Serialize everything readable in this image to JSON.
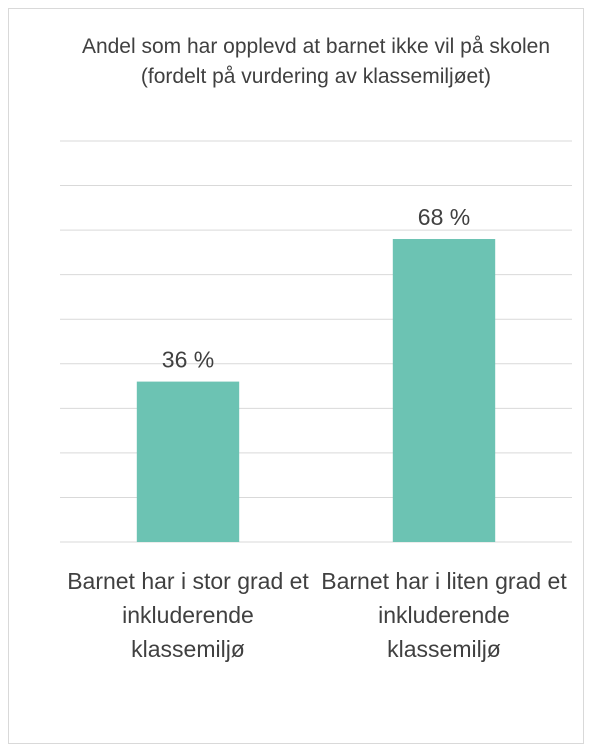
{
  "chart_data": {
    "type": "bar",
    "title": "Andel som har opplevd at barnet ikke vil på skolen (fordelt på vurdering av klassemiljøet)",
    "categories": [
      "Barnet har i stor grad et inkluderende klassemiljø",
      "Barnet har i liten grad et inkluderende klassemiljø"
    ],
    "values": [
      36,
      68
    ],
    "value_labels": [
      "36 %",
      "68 %"
    ],
    "color": "#6cc3b3",
    "ylim": [
      0,
      90
    ],
    "yticks": [
      0,
      10,
      20,
      30,
      40,
      50,
      60,
      70,
      80,
      90
    ],
    "grid": true
  }
}
